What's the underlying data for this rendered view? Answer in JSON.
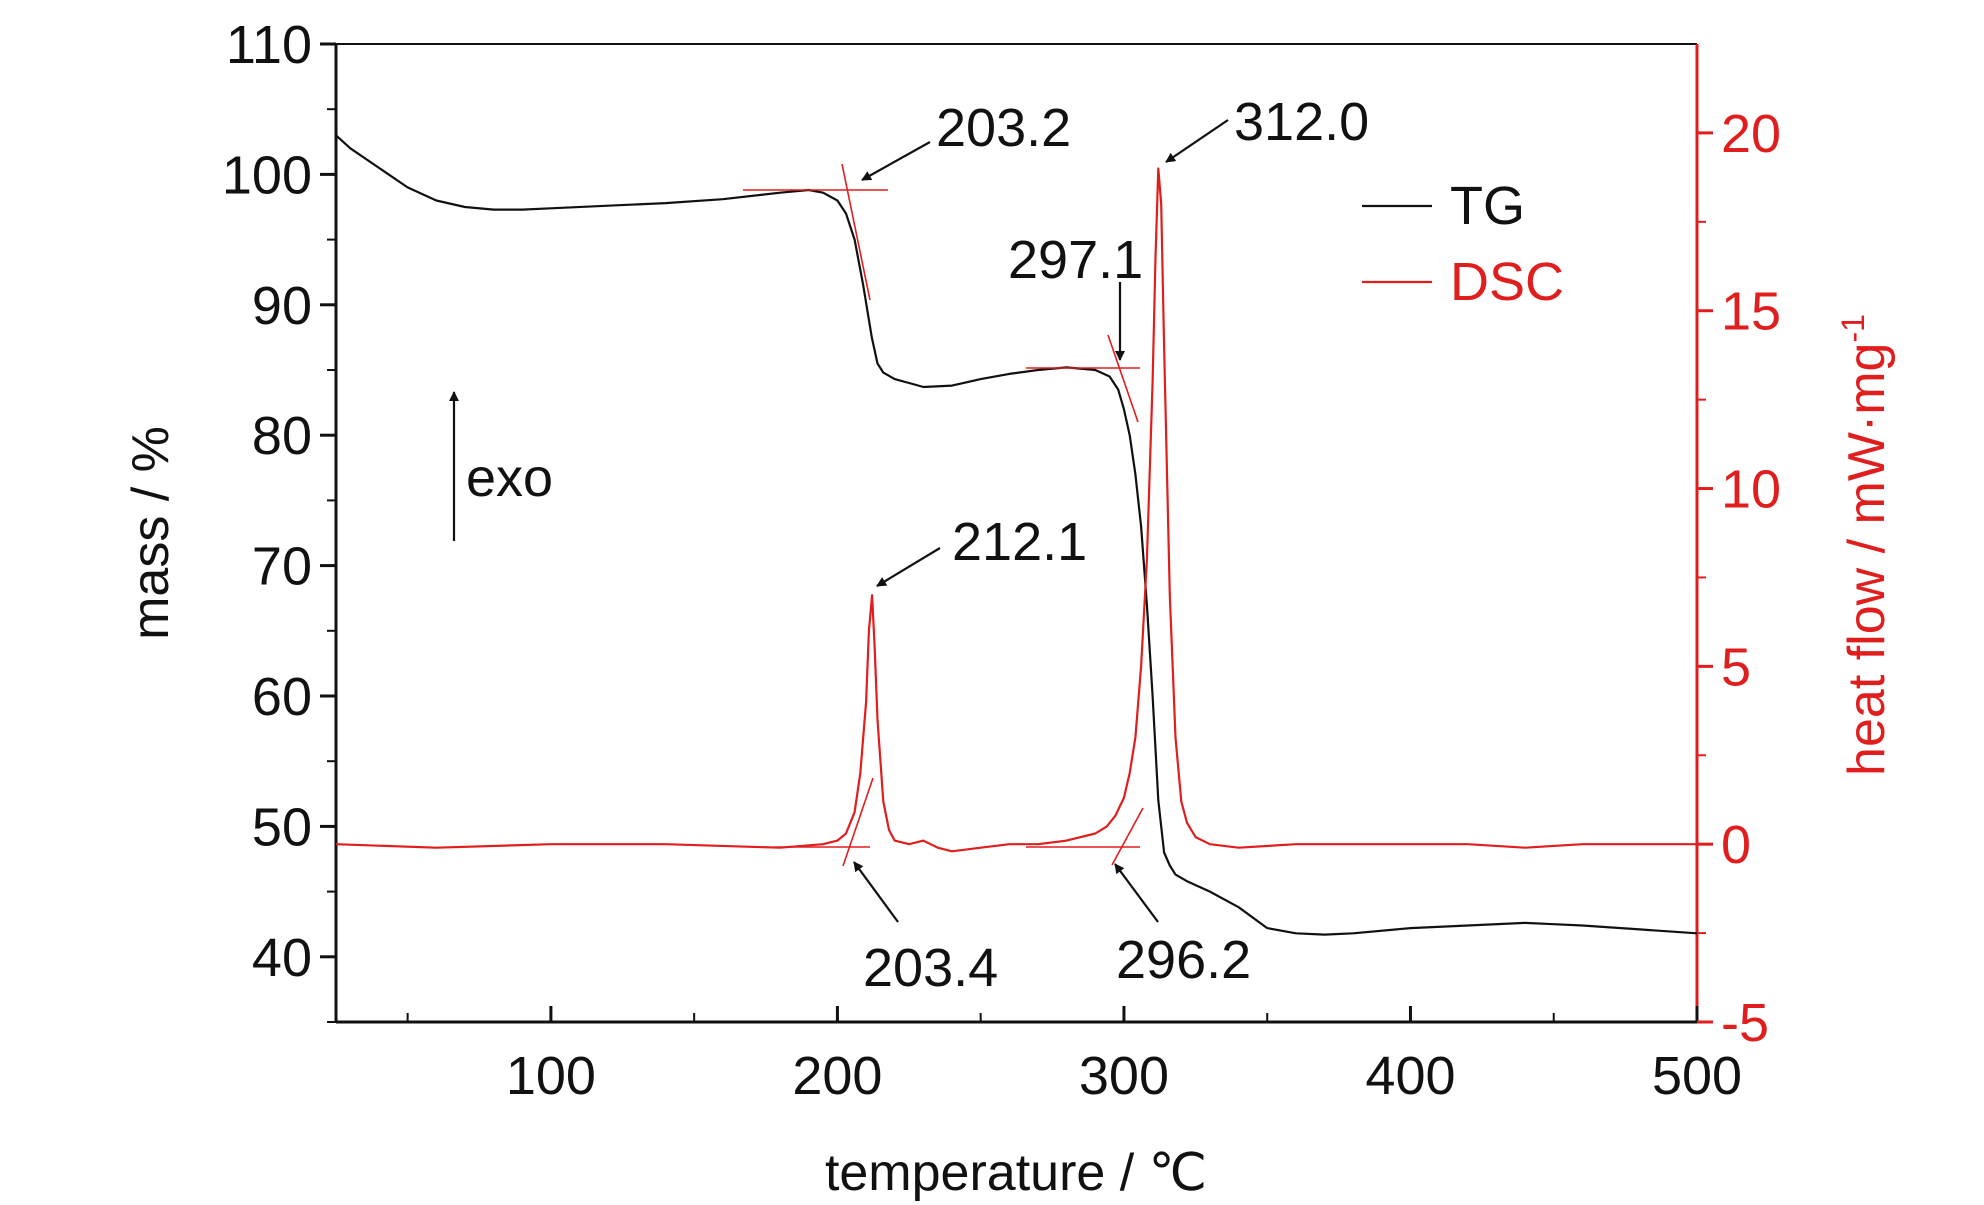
{
  "chart_data": {
    "type": "line",
    "xlabel": "temperature / ℃",
    "ylabel_left": "mass / %",
    "ylabel_right": "heat flow / mW·mg",
    "ylabel_right_sup": "-1",
    "xlim": [
      25,
      500
    ],
    "ylim_left": [
      35,
      110
    ],
    "ylim_right": [
      -5,
      22.5
    ],
    "x_ticks": [
      100,
      200,
      300,
      400,
      500
    ],
    "y_left_ticks": [
      40,
      50,
      60,
      70,
      80,
      90,
      100,
      110
    ],
    "y_right_ticks": [
      -5,
      0,
      5,
      10,
      15,
      20
    ],
    "grid": false,
    "legend_position": "top-right",
    "colors": {
      "tg": "#111111",
      "dsc": "#e01e1e",
      "right_axis": "#e01e1e"
    },
    "series": [
      {
        "name": "TG",
        "axis": "left",
        "x": [
          25,
          30,
          40,
          50,
          60,
          70,
          80,
          90,
          100,
          120,
          140,
          160,
          180,
          190,
          195,
          200,
          203,
          206,
          209,
          212,
          214,
          216,
          220,
          225,
          230,
          240,
          250,
          260,
          270,
          280,
          290,
          295,
          298,
          300,
          302,
          304,
          306,
          308,
          310,
          312,
          314,
          316,
          318,
          322,
          330,
          340,
          350,
          360,
          370,
          380,
          400,
          420,
          440,
          450,
          460,
          480,
          500
        ],
        "y": [
          103,
          102,
          100.5,
          99,
          98,
          97.5,
          97.3,
          97.3,
          97.4,
          97.6,
          97.8,
          98.1,
          98.6,
          98.8,
          98.6,
          98.0,
          97.0,
          95.0,
          91.5,
          87.5,
          85.5,
          84.8,
          84.3,
          84.0,
          83.7,
          83.8,
          84.3,
          84.7,
          85.0,
          85.2,
          85.0,
          84.5,
          83.5,
          82.0,
          80.0,
          77.0,
          73.0,
          67.0,
          60.0,
          52.0,
          48.0,
          47.0,
          46.3,
          45.8,
          45.0,
          43.8,
          42.2,
          41.8,
          41.7,
          41.8,
          42.2,
          42.4,
          42.6,
          42.5,
          42.4,
          42.1,
          41.8
        ]
      },
      {
        "name": "DSC",
        "axis": "right",
        "x": [
          25,
          60,
          100,
          140,
          180,
          195,
          200,
          203,
          206,
          208,
          210,
          211,
          212.1,
          213,
          214,
          216,
          218,
          220,
          225,
          230,
          235,
          240,
          250,
          260,
          270,
          280,
          290,
          294,
          297,
          300,
          302,
          304,
          306,
          308,
          310,
          311,
          312,
          313,
          314,
          316,
          318,
          320,
          322,
          325,
          330,
          340,
          360,
          380,
          400,
          420,
          440,
          460,
          480,
          500
        ],
        "y": [
          0.0,
          -0.1,
          0.0,
          0.0,
          -0.1,
          0.0,
          0.1,
          0.3,
          0.9,
          2.0,
          4.0,
          6.0,
          7.0,
          5.5,
          3.5,
          1.2,
          0.4,
          0.1,
          0.0,
          0.1,
          -0.1,
          -0.2,
          -0.1,
          0.0,
          0.0,
          0.1,
          0.3,
          0.5,
          0.8,
          1.3,
          2.0,
          3.0,
          5.0,
          8.0,
          13.0,
          16.5,
          19.0,
          18.0,
          14.0,
          7.0,
          3.0,
          1.2,
          0.6,
          0.2,
          0.0,
          -0.1,
          0.0,
          0.0,
          0.0,
          0.0,
          -0.1,
          0.0,
          0.0,
          0.0
        ]
      }
    ],
    "annotations": [
      {
        "label": "203.2",
        "target": "TG onset",
        "x": 203.2
      },
      {
        "label": "297.1",
        "target": "TG onset",
        "x": 297.1
      },
      {
        "label": "312.0",
        "target": "DSC peak",
        "x": 312.0
      },
      {
        "label": "212.1",
        "target": "DSC peak",
        "x": 212.1
      },
      {
        "label": "203.4",
        "target": "DSC onset",
        "x": 203.4
      },
      {
        "label": "296.2",
        "target": "DSC onset",
        "x": 296.2
      }
    ],
    "exo_label": "exo"
  }
}
